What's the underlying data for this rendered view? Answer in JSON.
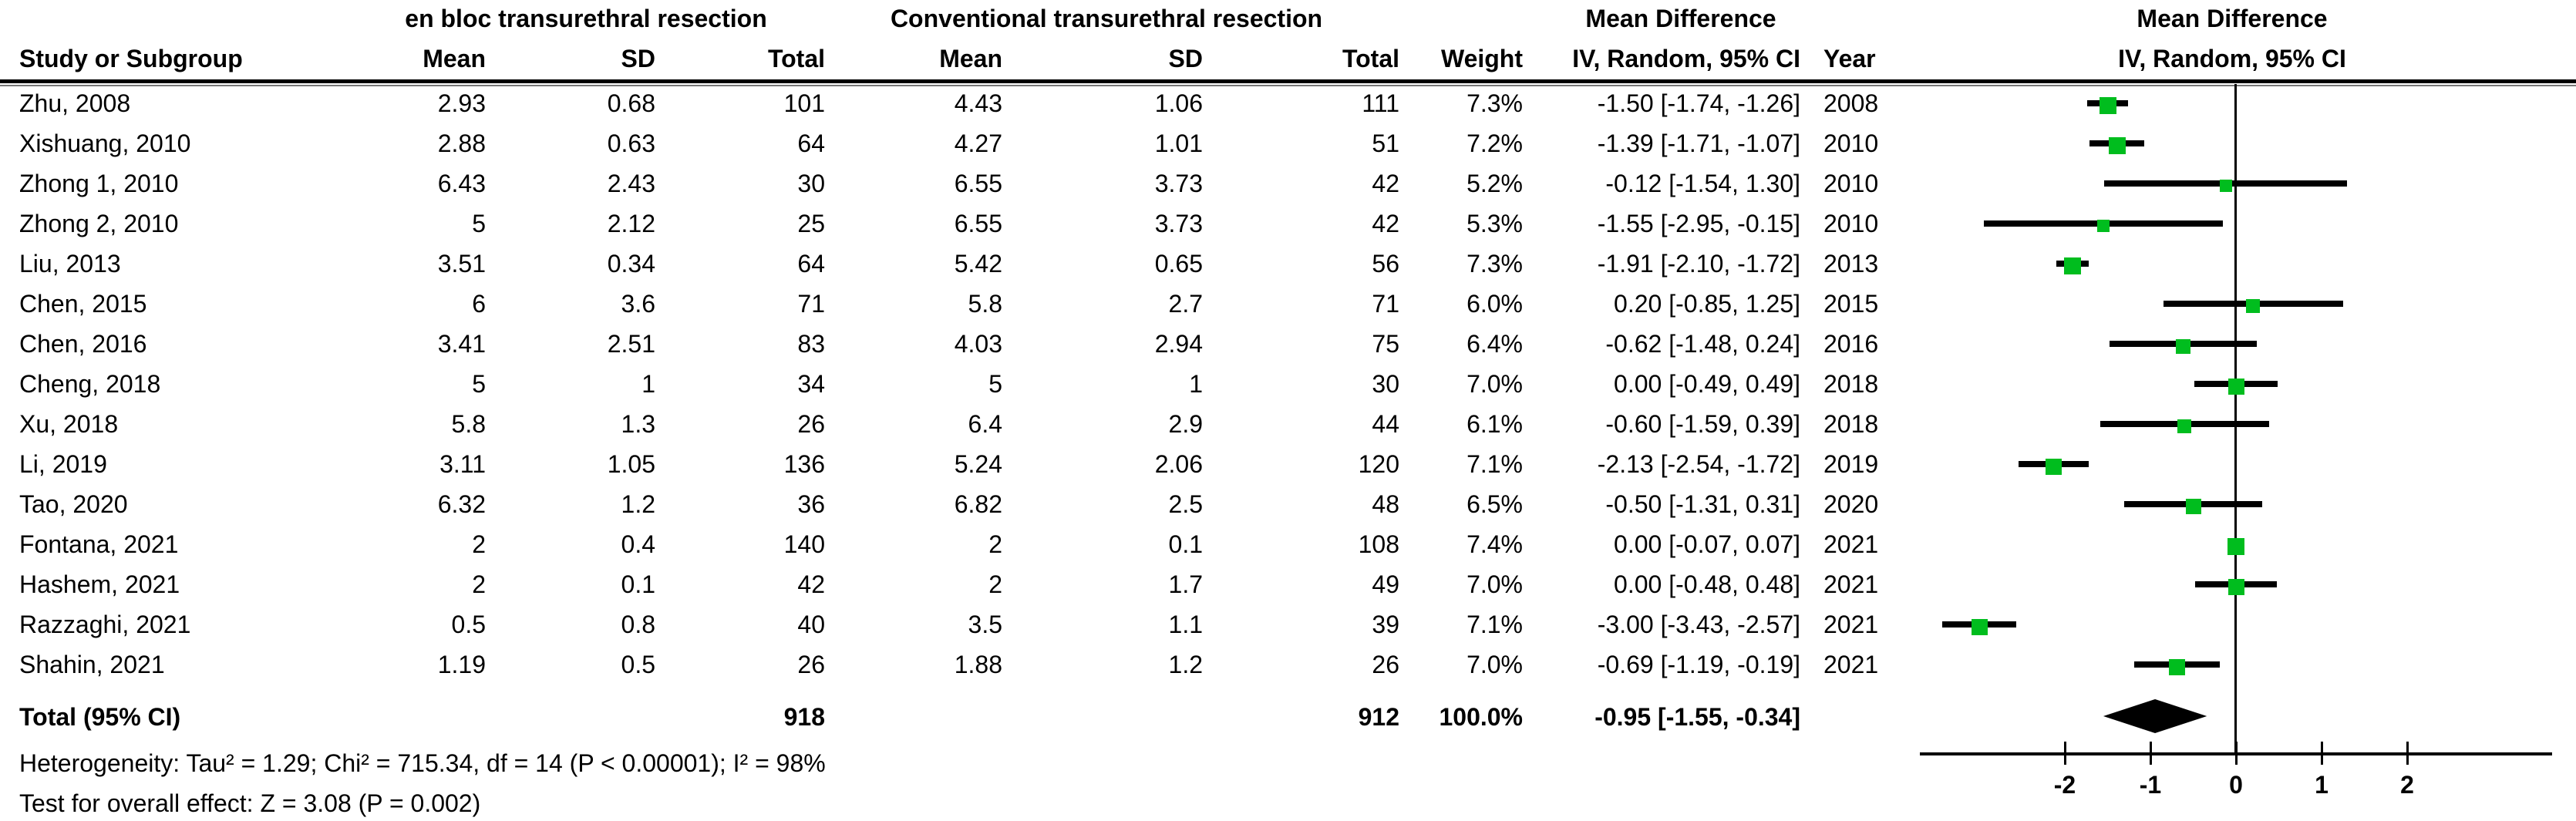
{
  "header": {
    "group1": "en bloc transurethral resection",
    "group2": "Conventional transurethral resection",
    "md_col_title": "Mean Difference",
    "md_plot_title": "Mean Difference",
    "study_col": "Study or Subgroup",
    "mean1_col": "Mean",
    "sd1_col": "SD",
    "total1_col": "Total",
    "mean2_col": "Mean",
    "sd2_col": "SD",
    "total2_col": "Total",
    "weight_col": "Weight",
    "ci_col": "IV, Random, 95% CI",
    "year_col": "Year",
    "ci_plot_col": "IV, Random, 95% CI"
  },
  "chart_data": {
    "type": "forest",
    "effect_measure": "Mean Difference, IV, Random, 95% CI",
    "x_ticks": [
      "-2",
      "-1",
      "0",
      "1",
      "2"
    ],
    "x_tick_values": [
      -2,
      -1,
      0,
      1,
      2
    ],
    "x_range": [
      -3.7,
      3.7
    ],
    "studies": [
      {
        "study": "Zhu, 2008",
        "mean1": "2.93",
        "sd1": "0.68",
        "total1": "101",
        "mean2": "4.43",
        "sd2": "1.06",
        "total2": "111",
        "weight": "7.3%",
        "ci_text": "-1.50 [-1.74, -1.26]",
        "year": "2008",
        "est": -1.5,
        "lo": -1.74,
        "hi": -1.26,
        "weight_val": 7.3
      },
      {
        "study": "Xishuang, 2010",
        "mean1": "2.88",
        "sd1": "0.63",
        "total1": "64",
        "mean2": "4.27",
        "sd2": "1.01",
        "total2": "51",
        "weight": "7.2%",
        "ci_text": "-1.39 [-1.71, -1.07]",
        "year": "2010",
        "est": -1.39,
        "lo": -1.71,
        "hi": -1.07,
        "weight_val": 7.2
      },
      {
        "study": "Zhong 1, 2010",
        "mean1": "6.43",
        "sd1": "2.43",
        "total1": "30",
        "mean2": "6.55",
        "sd2": "3.73",
        "total2": "42",
        "weight": "5.2%",
        "ci_text": "-0.12 [-1.54, 1.30]",
        "year": "2010",
        "est": -0.12,
        "lo": -1.54,
        "hi": 1.3,
        "weight_val": 5.2
      },
      {
        "study": "Zhong 2, 2010",
        "mean1": "5",
        "sd1": "2.12",
        "total1": "25",
        "mean2": "6.55",
        "sd2": "3.73",
        "total2": "42",
        "weight": "5.3%",
        "ci_text": "-1.55 [-2.95, -0.15]",
        "year": "2010",
        "est": -1.55,
        "lo": -2.95,
        "hi": -0.15,
        "weight_val": 5.3
      },
      {
        "study": "Liu, 2013",
        "mean1": "3.51",
        "sd1": "0.34",
        "total1": "64",
        "mean2": "5.42",
        "sd2": "0.65",
        "total2": "56",
        "weight": "7.3%",
        "ci_text": "-1.91 [-2.10, -1.72]",
        "year": "2013",
        "est": -1.91,
        "lo": -2.1,
        "hi": -1.72,
        "weight_val": 7.3
      },
      {
        "study": "Chen, 2015",
        "mean1": "6",
        "sd1": "3.6",
        "total1": "71",
        "mean2": "5.8",
        "sd2": "2.7",
        "total2": "71",
        "weight": "6.0%",
        "ci_text": "0.20 [-0.85, 1.25]",
        "year": "2015",
        "est": 0.2,
        "lo": -0.85,
        "hi": 1.25,
        "weight_val": 6.0
      },
      {
        "study": "Chen, 2016",
        "mean1": "3.41",
        "sd1": "2.51",
        "total1": "83",
        "mean2": "4.03",
        "sd2": "2.94",
        "total2": "75",
        "weight": "6.4%",
        "ci_text": "-0.62 [-1.48, 0.24]",
        "year": "2016",
        "est": -0.62,
        "lo": -1.48,
        "hi": 0.24,
        "weight_val": 6.4
      },
      {
        "study": "Cheng, 2018",
        "mean1": "5",
        "sd1": "1",
        "total1": "34",
        "mean2": "5",
        "sd2": "1",
        "total2": "30",
        "weight": "7.0%",
        "ci_text": "0.00 [-0.49, 0.49]",
        "year": "2018",
        "est": 0.0,
        "lo": -0.49,
        "hi": 0.49,
        "weight_val": 7.0
      },
      {
        "study": "Xu, 2018",
        "mean1": "5.8",
        "sd1": "1.3",
        "total1": "26",
        "mean2": "6.4",
        "sd2": "2.9",
        "total2": "44",
        "weight": "6.1%",
        "ci_text": "-0.60 [-1.59, 0.39]",
        "year": "2018",
        "est": -0.6,
        "lo": -1.59,
        "hi": 0.39,
        "weight_val": 6.1
      },
      {
        "study": "Li, 2019",
        "mean1": "3.11",
        "sd1": "1.05",
        "total1": "136",
        "mean2": "5.24",
        "sd2": "2.06",
        "total2": "120",
        "weight": "7.1%",
        "ci_text": "-2.13 [-2.54, -1.72]",
        "year": "2019",
        "est": -2.13,
        "lo": -2.54,
        "hi": -1.72,
        "weight_val": 7.1
      },
      {
        "study": "Tao, 2020",
        "mean1": "6.32",
        "sd1": "1.2",
        "total1": "36",
        "mean2": "6.82",
        "sd2": "2.5",
        "total2": "48",
        "weight": "6.5%",
        "ci_text": "-0.50 [-1.31, 0.31]",
        "year": "2020",
        "est": -0.5,
        "lo": -1.31,
        "hi": 0.31,
        "weight_val": 6.5
      },
      {
        "study": "Fontana, 2021",
        "mean1": "2",
        "sd1": "0.4",
        "total1": "140",
        "mean2": "2",
        "sd2": "0.1",
        "total2": "108",
        "weight": "7.4%",
        "ci_text": "0.00 [-0.07, 0.07]",
        "year": "2021",
        "est": 0.0,
        "lo": -0.07,
        "hi": 0.07,
        "weight_val": 7.4
      },
      {
        "study": "Hashem, 2021",
        "mean1": "2",
        "sd1": "0.1",
        "total1": "42",
        "mean2": "2",
        "sd2": "1.7",
        "total2": "49",
        "weight": "7.0%",
        "ci_text": "0.00 [-0.48, 0.48]",
        "year": "2021",
        "est": 0.0,
        "lo": -0.48,
        "hi": 0.48,
        "weight_val": 7.0
      },
      {
        "study": "Razzaghi, 2021",
        "mean1": "0.5",
        "sd1": "0.8",
        "total1": "40",
        "mean2": "3.5",
        "sd2": "1.1",
        "total2": "39",
        "weight": "7.1%",
        "ci_text": "-3.00 [-3.43, -2.57]",
        "year": "2021",
        "est": -3.0,
        "lo": -3.43,
        "hi": -2.57,
        "weight_val": 7.1
      },
      {
        "study": "Shahin, 2021",
        "mean1": "1.19",
        "sd1": "0.5",
        "total1": "26",
        "mean2": "1.88",
        "sd2": "1.2",
        "total2": "26",
        "weight": "7.0%",
        "ci_text": "-0.69 [-1.19, -0.19]",
        "year": "2021",
        "est": -0.69,
        "lo": -1.19,
        "hi": -0.19,
        "weight_val": 7.0
      }
    ],
    "total": {
      "label": "Total (95% CI)",
      "total1": "918",
      "total2": "912",
      "weight": "100.0%",
      "ci_text": "-0.95 [-1.55, -0.34]",
      "est": -0.95,
      "lo": -1.55,
      "hi": -0.34
    }
  },
  "footer": {
    "heterogeneity": "Heterogeneity: Tau² = 1.29; Chi² = 715.34, df = 14 (P < 0.00001); I² = 98%",
    "overall_effect": "Test for overall effect: Z = 3.08 (P = 0.002)"
  },
  "colors": {
    "marker_green": "#00bd1e",
    "line_black": "#000000",
    "diamond_black": "#000000"
  }
}
